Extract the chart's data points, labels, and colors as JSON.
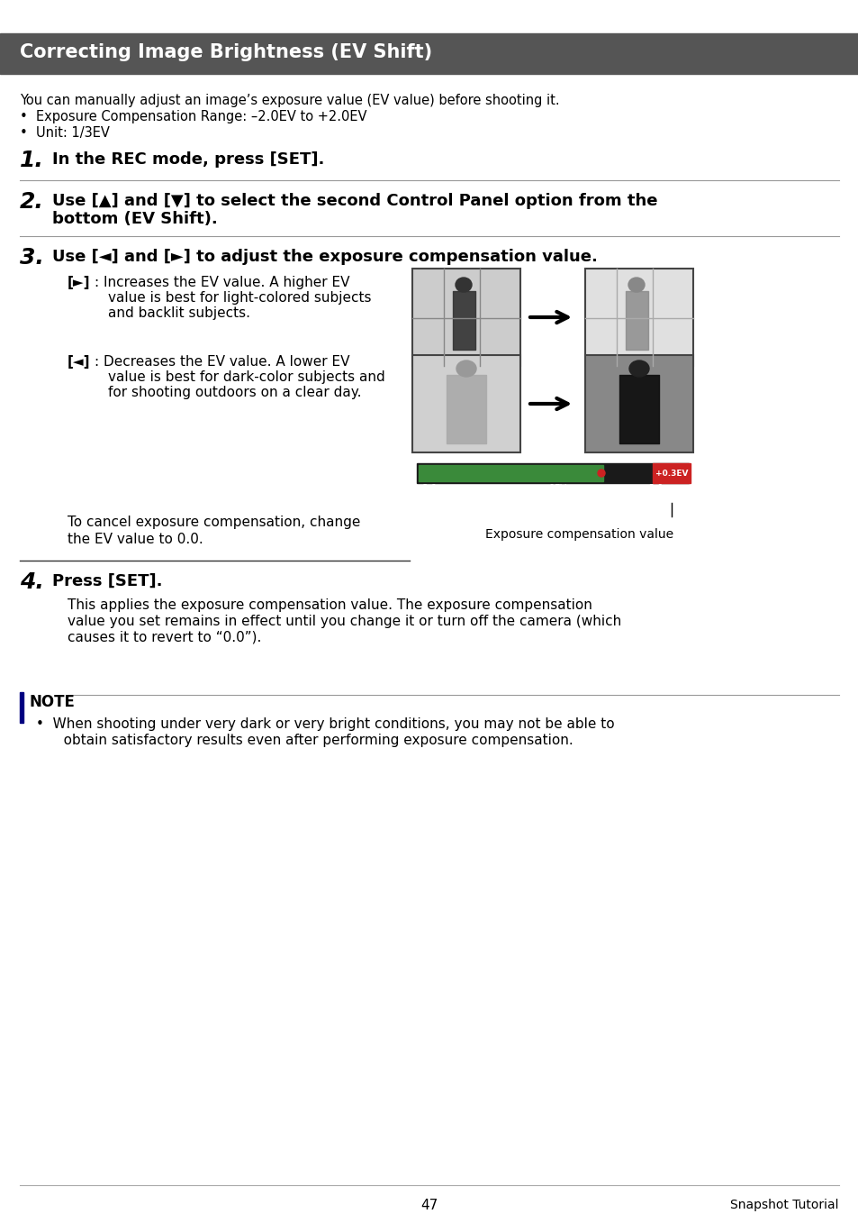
{
  "page_bg": "#ffffff",
  "header_bg": "#555555",
  "header_text": "Correcting Image Brightness (EV Shift)",
  "header_text_color": "#ffffff",
  "body_text_color": "#000000",
  "intro_lines": [
    "You can manually adjust an image’s exposure value (EV value) before shooting it.",
    "•  Exposure Compensation Range: –2.0EV to +2.0EV",
    "•  Unit: 1/3EV"
  ],
  "step1_num": "1.",
  "step1_bold": "In the REC mode, press [SET].",
  "step2_num": "2.",
  "step2_bold_line1": "Use [▲] and [▼] to select the second Control Panel option from the",
  "step2_bold_line2": "bottom (EV Shift).",
  "step3_num": "3.",
  "step3_bold": "Use [◄] and [►] to adjust the exposure compensation value.",
  "right_sym": "[►]",
  "right_line1": ": Increases the EV value. A higher EV",
  "right_line2": "value is best for light-colored subjects",
  "right_line3": "and backlit subjects.",
  "left_sym": "[◄]",
  "left_line1": ": Decreases the EV value. A lower EV",
  "left_line2": "value is best for dark-color subjects and",
  "left_line3": "for shooting outdoors on a clear day.",
  "cancel_line1": "To cancel exposure compensation, change",
  "cancel_line2": "the EV value to 0.0.",
  "exposure_label": "Exposure compensation value",
  "step4_num": "4.",
  "step4_bold": "Press [SET].",
  "step4_line1": "This applies the exposure compensation value. The exposure compensation",
  "step4_line2": "value you set remains in effect until you change it or turn off the camera (which",
  "step4_line3": "causes it to revert to “0.0”).",
  "note_label": "NOTE",
  "note_line1": "•  When shooting under very dark or very bright conditions, you may not be able to",
  "note_line2": "   obtain satisfactory results even after performing exposure compensation.",
  "footer_page": "47",
  "footer_right": "Snapshot Tutorial"
}
